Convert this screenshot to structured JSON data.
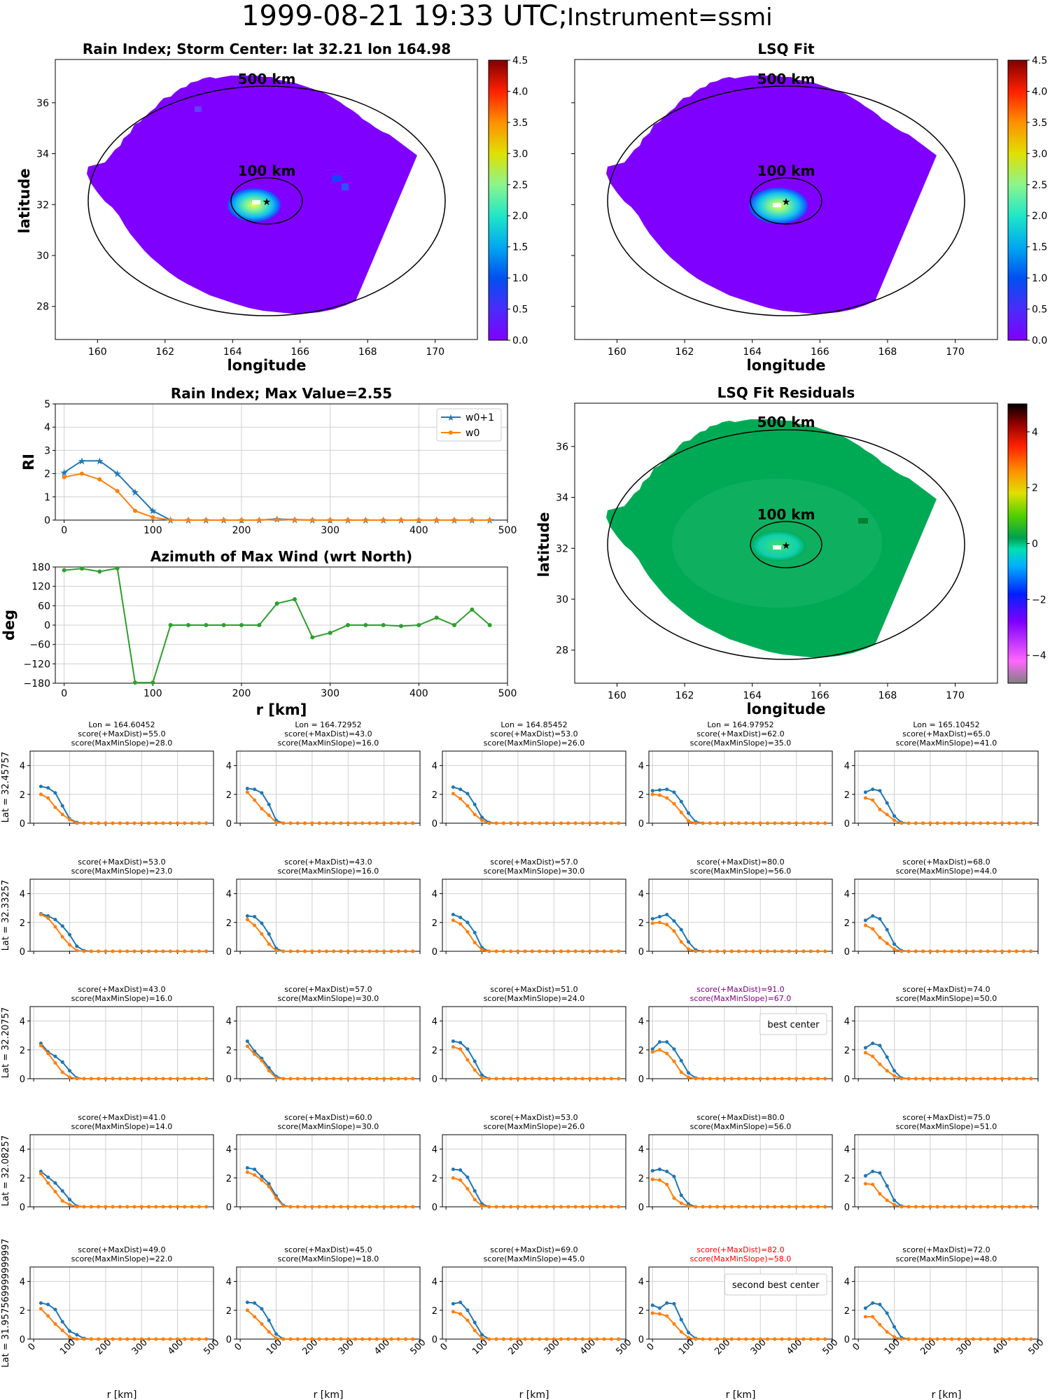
{
  "suptitle": {
    "main": "1999-08-21 19:33 UTC;",
    "instrument": "Instrument=ssmi"
  },
  "colors": {
    "w0p1": "#1f77b4",
    "w0": "#ff7f0e",
    "azimuth": "#2ca02c",
    "gray": "#7f7f7f",
    "best": "#800080",
    "second": "#ff0000",
    "rain_bg": "#8000ff",
    "resid_bg": "#00aa55"
  },
  "maps": {
    "rain": {
      "title": "Rain Index; Storm Center: lat 32.21 lon 164.98",
      "xlabel": "longitude",
      "ylabel": "latitude"
    },
    "lsq": {
      "title": "LSQ Fit",
      "xlabel": "longitude"
    },
    "resid": {
      "title": "LSQ Fit Residuals",
      "xlabel": "longitude",
      "ylabel": "latitude"
    },
    "ring_outer_label": "500 km",
    "ring_inner_label": "100 km",
    "xticks": [
      "160",
      "162",
      "164",
      "166",
      "168",
      "170"
    ],
    "yticks": [
      "28",
      "30",
      "32",
      "34",
      "36"
    ],
    "cbar_rain_ticks": [
      "0.0",
      "0.5",
      "1.0",
      "1.5",
      "2.0",
      "2.5",
      "3.0",
      "3.5",
      "4.0",
      "4.5"
    ],
    "cbar_resid_ticks": [
      "−4",
      "−2",
      "0",
      "2",
      "4"
    ]
  },
  "chart_data": [
    {
      "type": "line",
      "title": "Rain Index; Max Value=2.55",
      "ylabel": "RI",
      "xlabel": "",
      "xlim": [
        -10,
        500
      ],
      "ylim": [
        0,
        5
      ],
      "xticks": [
        "0",
        "100",
        "200",
        "300",
        "400",
        "500"
      ],
      "yticks": [
        "0",
        "1",
        "2",
        "3",
        "4",
        "5"
      ],
      "grid": true,
      "legend": "top-right",
      "x": [
        0,
        20,
        40,
        60,
        80,
        100,
        120,
        140,
        160,
        180,
        200,
        220,
        240,
        260,
        280,
        300,
        320,
        340,
        360,
        380,
        400,
        420,
        440,
        460,
        480
      ],
      "series": [
        {
          "name": "w0+1",
          "values": [
            2.05,
            2.55,
            2.55,
            2.0,
            1.2,
            0.4,
            0,
            0,
            0,
            0,
            0,
            0,
            0.05,
            0.02,
            0,
            0,
            0,
            0,
            0,
            0,
            0,
            0,
            0,
            0,
            0
          ]
        },
        {
          "name": "w0",
          "values": [
            1.85,
            2.0,
            1.75,
            1.25,
            0.4,
            0.12,
            0,
            0,
            0,
            0,
            0,
            0,
            0.03,
            0.01,
            0,
            0,
            0,
            0,
            0,
            0,
            0,
            0,
            0,
            0,
            0
          ]
        }
      ]
    },
    {
      "type": "line",
      "title": "Azimuth of Max Wind (wrt North)",
      "ylabel": "deg",
      "xlabel": "r [km]",
      "xlim": [
        -10,
        500
      ],
      "ylim": [
        -180,
        180
      ],
      "xticks": [
        "0",
        "100",
        "200",
        "300",
        "400",
        "500"
      ],
      "yticks": [
        "−180",
        "−120",
        "−60",
        "0",
        "60",
        "120",
        "180"
      ],
      "grid": true,
      "x": [
        0,
        20,
        40,
        60,
        80,
        100,
        120,
        140,
        160,
        180,
        200,
        220,
        240,
        260,
        280,
        300,
        320,
        340,
        360,
        380,
        400,
        420,
        440,
        460,
        480
      ],
      "series": [
        {
          "values": [
            170,
            175,
            166,
            176,
            -178,
            -178,
            0,
            0,
            0,
            0,
            0,
            0,
            67,
            80,
            -38,
            -24,
            0,
            0,
            0,
            -3,
            0,
            23,
            0,
            48,
            0
          ]
        }
      ]
    },
    {
      "type": "line",
      "subplot_grid": "5x5",
      "xlabel": "r [km]",
      "xlim": [
        -10,
        500
      ],
      "ylim": [
        0,
        5
      ],
      "xticks": [
        "0",
        "100",
        "200",
        "300",
        "400",
        "500"
      ],
      "yticks": [
        "0",
        "2",
        "4"
      ],
      "grid": true,
      "column_titles": [
        "Lon = 164.60452",
        "Lon = 164.72952",
        "Lon = 164.85452",
        "Lon = 164.97952",
        "Lon = 165.10452"
      ],
      "row_labels": [
        "Lat = 32.45757",
        "Lat = 32.33257",
        "Lat = 32.20757",
        "Lat = 32.08257",
        "Lat = 31.957569999999997"
      ],
      "x": [
        0,
        20,
        40,
        60,
        80,
        100,
        120,
        140,
        160,
        180,
        200,
        220,
        240,
        260,
        280,
        300,
        320,
        340,
        360,
        380,
        400,
        420,
        440,
        460,
        480
      ],
      "panels": [
        {
          "scores": [
            "score(+MaxDist)=55.0",
            "score(MaxMinSlope)=28.0"
          ],
          "w0p1": [
            null,
            2.55,
            2.45,
            2.1,
            1.2,
            0.3,
            0.05
          ],
          "w0": [
            null,
            2.0,
            1.75,
            1.1,
            0.6,
            0.25,
            0
          ]
        },
        {
          "scores": [
            "score(+MaxDist)=43.0",
            "score(MaxMinSlope)=16.0"
          ],
          "w0p1": [
            null,
            2.4,
            2.35,
            2.1,
            1.3,
            0.2,
            0
          ],
          "w0": [
            null,
            2.15,
            1.6,
            1.0,
            0.55,
            0.05,
            0
          ]
        },
        {
          "scores": [
            "score(+MaxDist)=53.0",
            "score(MaxMinSlope)=26.0"
          ],
          "w0p1": [
            null,
            2.5,
            2.35,
            2.05,
            1.3,
            0.4,
            0.05
          ],
          "w0": [
            null,
            2.05,
            1.7,
            1.2,
            0.6,
            0.2,
            0
          ]
        },
        {
          "scores": [
            "score(+MaxDist)=62.0",
            "score(MaxMinSlope)=35.0"
          ],
          "w0p1": [
            2.25,
            2.3,
            2.35,
            2.15,
            1.5,
            0.7,
            0.1
          ],
          "w0": [
            2.0,
            1.95,
            1.75,
            1.35,
            0.75,
            0.15,
            0
          ]
        },
        {
          "scores": [
            "score(+MaxDist)=65.0",
            "score(MaxMinSlope)=41.0"
          ],
          "w0p1": [
            null,
            2.15,
            2.35,
            2.25,
            1.4,
            0.5,
            0.05
          ],
          "w0": [
            null,
            1.75,
            1.6,
            0.95,
            0.6,
            0.2,
            0
          ]
        },
        {
          "scores": [
            "score(+MaxDist)=53.0",
            "score(MaxMinSlope)=23.0"
          ],
          "w0p1": [
            null,
            2.6,
            2.45,
            2.2,
            1.75,
            1.15,
            0.35,
            0.05
          ],
          "w0": [
            null,
            2.55,
            2.3,
            1.7,
            1.0,
            0.45,
            0.05
          ]
        },
        {
          "scores": [
            "score(+MaxDist)=43.0",
            "score(MaxMinSlope)=16.0"
          ],
          "w0p1": [
            null,
            2.45,
            2.4,
            1.95,
            1.2,
            0.2,
            0
          ],
          "w0": [
            null,
            2.2,
            1.8,
            1.2,
            0.5,
            0.05,
            0
          ]
        },
        {
          "scores": [
            "score(+MaxDist)=57.0",
            "score(MaxMinSlope)=30.0"
          ],
          "w0p1": [
            null,
            2.55,
            2.35,
            2.0,
            1.3,
            0.25,
            0
          ],
          "w0": [
            null,
            2.15,
            1.9,
            1.35,
            0.6,
            0.1,
            0
          ]
        },
        {
          "scores": [
            "score(+MaxDist)=80.0",
            "score(MaxMinSlope)=56.0"
          ],
          "w0p1": [
            2.25,
            2.4,
            2.55,
            2.1,
            1.5,
            0.65,
            0.1
          ],
          "w0": [
            1.95,
            2.0,
            1.85,
            1.4,
            0.65,
            0.15,
            0
          ]
        },
        {
          "scores": [
            "score(+MaxDist)=68.0",
            "score(MaxMinSlope)=44.0"
          ],
          "w0p1": [
            null,
            2.15,
            2.45,
            2.25,
            1.5,
            0.5,
            0.05
          ],
          "w0": [
            null,
            1.8,
            1.55,
            0.95,
            0.55,
            0.15,
            0
          ]
        },
        {
          "scores": [
            "score(+MaxDist)=43.0",
            "score(MaxMinSlope)=16.0"
          ],
          "w0p1": [
            null,
            2.45,
            1.85,
            1.55,
            1.15,
            0.55,
            0.05
          ],
          "w0": [
            null,
            2.3,
            1.75,
            1.1,
            0.45,
            0.1,
            0
          ]
        },
        {
          "scores": [
            "score(+MaxDist)=57.0",
            "score(MaxMinSlope)=30.0"
          ],
          "w0p1": [
            null,
            2.6,
            1.9,
            1.4,
            0.75,
            0.15,
            0
          ],
          "w0": [
            null,
            2.25,
            1.7,
            1.25,
            0.55,
            0.05,
            0
          ]
        },
        {
          "scores": [
            "score(+MaxDist)=51.0",
            "score(MaxMinSlope)=24.0"
          ],
          "w0p1": [
            null,
            2.6,
            2.5,
            2.05,
            1.2,
            0.25,
            0
          ],
          "w0": [
            null,
            2.2,
            2.05,
            1.3,
            0.6,
            0.05,
            0
          ]
        },
        {
          "scores": [
            "score(+MaxDist)=91.0",
            "score(MaxMinSlope)=67.0"
          ],
          "highlight": "best",
          "annotation": "best center",
          "w0p1": [
            2.05,
            2.55,
            2.55,
            2.05,
            1.25,
            0.4,
            0.05
          ],
          "w0": [
            1.85,
            2.0,
            1.75,
            1.2,
            0.45,
            0.1,
            0
          ]
        },
        {
          "scores": [
            "score(+MaxDist)=74.0",
            "score(MaxMinSlope)=50.0"
          ],
          "w0p1": [
            null,
            2.15,
            2.45,
            2.3,
            1.5,
            0.55,
            0.05
          ],
          "w0": [
            null,
            1.8,
            1.55,
            1.0,
            0.55,
            0.2,
            0
          ]
        },
        {
          "scores": [
            "score(+MaxDist)=41.0",
            "score(MaxMinSlope)=14.0"
          ],
          "w0p1": [
            null,
            2.45,
            2.05,
            1.65,
            1.1,
            0.5,
            0.05
          ],
          "w0": [
            null,
            2.3,
            1.65,
            1.05,
            0.4,
            0.15,
            0
          ]
        },
        {
          "scores": [
            "score(+MaxDist)=60.0",
            "score(MaxMinSlope)=30.0"
          ],
          "w0p1": [
            null,
            2.7,
            2.6,
            2.1,
            1.6,
            0.75,
            0.1
          ],
          "w0": [
            null,
            2.4,
            2.2,
            1.85,
            1.4,
            0.6,
            0.05
          ]
        },
        {
          "scores": [
            "score(+MaxDist)=53.0",
            "score(MaxMinSlope)=26.0"
          ],
          "w0p1": [
            null,
            2.6,
            2.55,
            2.05,
            1.1,
            0.2,
            0
          ],
          "w0": [
            null,
            2.0,
            1.85,
            1.25,
            0.5,
            0.05,
            0
          ]
        },
        {
          "scores": [
            "score(+MaxDist)=80.0",
            "score(MaxMinSlope)=56.0"
          ],
          "w0p1": [
            2.5,
            2.6,
            2.45,
            2.1,
            0.8,
            0.2,
            0
          ],
          "w0": [
            1.9,
            1.85,
            1.55,
            0.6,
            0.25,
            0.05,
            0
          ]
        },
        {
          "scores": [
            "score(+MaxDist)=75.0",
            "score(MaxMinSlope)=51.0"
          ],
          "w0p1": [
            null,
            2.15,
            2.45,
            2.35,
            1.45,
            0.45,
            0.05
          ],
          "w0": [
            null,
            1.6,
            1.55,
            0.9,
            0.45,
            0.15,
            0
          ]
        },
        {
          "scores": [
            "score(+MaxDist)=49.0",
            "score(MaxMinSlope)=22.0"
          ],
          "w0p1": [
            null,
            2.5,
            2.4,
            2.05,
            1.2,
            0.55,
            0.3,
            0.05
          ],
          "w0": [
            null,
            2.1,
            1.6,
            1.05,
            0.6,
            0.15,
            0
          ]
        },
        {
          "scores": [
            "score(+MaxDist)=45.0",
            "score(MaxMinSlope)=18.0"
          ],
          "w0p1": [
            null,
            2.55,
            2.5,
            2.1,
            1.3,
            0.35,
            0
          ],
          "w0": [
            null,
            2.0,
            1.55,
            1.05,
            0.5,
            0.05,
            0
          ]
        },
        {
          "scores": [
            "score(+MaxDist)=69.0",
            "score(MaxMinSlope)=45.0"
          ],
          "w0p1": [
            null,
            2.45,
            2.55,
            2.0,
            1.15,
            0.3,
            0
          ],
          "w0": [
            null,
            1.9,
            1.75,
            1.3,
            0.6,
            0.05,
            0
          ]
        },
        {
          "scores": [
            "score(+MaxDist)=82.0",
            "score(MaxMinSlope)=58.0"
          ],
          "highlight": "second",
          "annotation": "second best center",
          "w0p1": [
            2.35,
            2.15,
            2.5,
            2.45,
            1.35,
            0.45,
            0.05
          ],
          "w0": [
            1.8,
            1.75,
            1.6,
            1.05,
            0.5,
            0.1,
            0
          ]
        },
        {
          "scores": [
            "score(+MaxDist)=72.0",
            "score(MaxMinSlope)=48.0"
          ],
          "w0p1": [
            null,
            2.15,
            2.5,
            2.4,
            1.8,
            0.85,
            0.1
          ],
          "w0": [
            null,
            1.55,
            1.55,
            1.0,
            0.5,
            0.15,
            0
          ]
        }
      ]
    }
  ]
}
